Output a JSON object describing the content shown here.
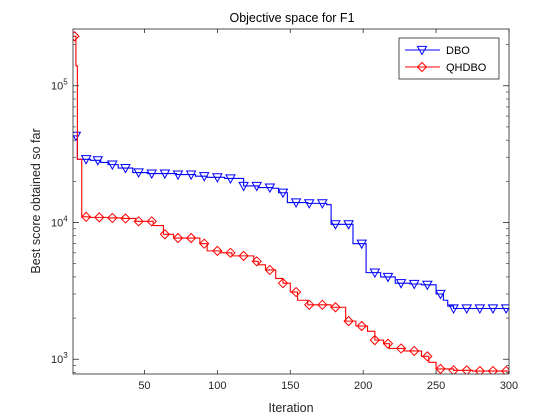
{
  "chart_data": {
    "type": "line",
    "title": "Objective space for F1",
    "xlabel": "Iteration",
    "ylabel": "Best score obtained so far",
    "xlim": [
      1,
      300
    ],
    "ylim": [
      780,
      260000
    ],
    "yscale": "log",
    "grid": false,
    "legend_position": "top-right",
    "x_ticks": [
      {
        "value": 50,
        "label": "50"
      },
      {
        "value": 100,
        "label": "100"
      },
      {
        "value": 150,
        "label": "150"
      },
      {
        "value": 200,
        "label": "200"
      },
      {
        "value": 250,
        "label": "250"
      },
      {
        "value": 300,
        "label": "300"
      }
    ],
    "y_ticks": [
      {
        "value": 1000,
        "base": "10",
        "exp": "3"
      },
      {
        "value": 10000,
        "base": "10",
        "exp": "4"
      },
      {
        "value": 100000,
        "base": "10",
        "exp": "5"
      }
    ],
    "series": [
      {
        "name": "DBO",
        "color": "#0000ff",
        "marker": "triangle-down",
        "steps": [
          [
            1,
            43000
          ],
          [
            4,
            29000
          ],
          [
            13,
            28500
          ],
          [
            20,
            27500
          ],
          [
            25,
            26500
          ],
          [
            32,
            25000
          ],
          [
            42,
            23200
          ],
          [
            52,
            22800
          ],
          [
            72,
            22400
          ],
          [
            85,
            21800
          ],
          [
            93,
            21400
          ],
          [
            105,
            21000
          ],
          [
            118,
            18500
          ],
          [
            128,
            18000
          ],
          [
            138,
            17800
          ],
          [
            142,
            16500
          ],
          [
            148,
            14000
          ],
          [
            162,
            13800
          ],
          [
            175,
            13500
          ],
          [
            178,
            9700
          ],
          [
            193,
            7000
          ],
          [
            202,
            4300
          ],
          [
            212,
            4000
          ],
          [
            222,
            3600
          ],
          [
            232,
            3550
          ],
          [
            240,
            3500
          ],
          [
            250,
            3000
          ],
          [
            255,
            2700
          ],
          [
            258,
            2450
          ],
          [
            262,
            2350
          ],
          [
            300,
            2300
          ]
        ],
        "markers_x": [
          3,
          10,
          18,
          28,
          37,
          46,
          55,
          64,
          73,
          82,
          91,
          100,
          109,
          118,
          127,
          136,
          145,
          154,
          163,
          172,
          181,
          190,
          199,
          208,
          217,
          226,
          235,
          244,
          253,
          262,
          271,
          280,
          289,
          298
        ]
      },
      {
        "name": "QHDBO",
        "color": "#ff0000",
        "marker": "diamond",
        "steps": [
          [
            1,
            230000
          ],
          [
            3,
            140000
          ],
          [
            4,
            29000
          ],
          [
            7,
            11000
          ],
          [
            12,
            10900
          ],
          [
            25,
            10800
          ],
          [
            35,
            10700
          ],
          [
            44,
            10200
          ],
          [
            56,
            9500
          ],
          [
            63,
            8200
          ],
          [
            70,
            7700
          ],
          [
            88,
            7000
          ],
          [
            93,
            6200
          ],
          [
            102,
            6000
          ],
          [
            110,
            5700
          ],
          [
            125,
            5200
          ],
          [
            128,
            4900
          ],
          [
            133,
            4500
          ],
          [
            140,
            3900
          ],
          [
            145,
            3600
          ],
          [
            150,
            3100
          ],
          [
            155,
            2700
          ],
          [
            162,
            2500
          ],
          [
            178,
            2400
          ],
          [
            188,
            1900
          ],
          [
            195,
            1750
          ],
          [
            203,
            1600
          ],
          [
            208,
            1380
          ],
          [
            214,
            1300
          ],
          [
            218,
            1200
          ],
          [
            228,
            1150
          ],
          [
            240,
            1050
          ],
          [
            245,
            950
          ],
          [
            250,
            850
          ],
          [
            262,
            830
          ],
          [
            275,
            820
          ],
          [
            300,
            800
          ]
        ],
        "markers_x": [
          2,
          10,
          19,
          28,
          37,
          46,
          55,
          64,
          73,
          82,
          91,
          100,
          109,
          118,
          127,
          136,
          145,
          154,
          163,
          172,
          181,
          190,
          199,
          208,
          217,
          226,
          235,
          244,
          253,
          262,
          271,
          280,
          289,
          298
        ]
      }
    ]
  }
}
